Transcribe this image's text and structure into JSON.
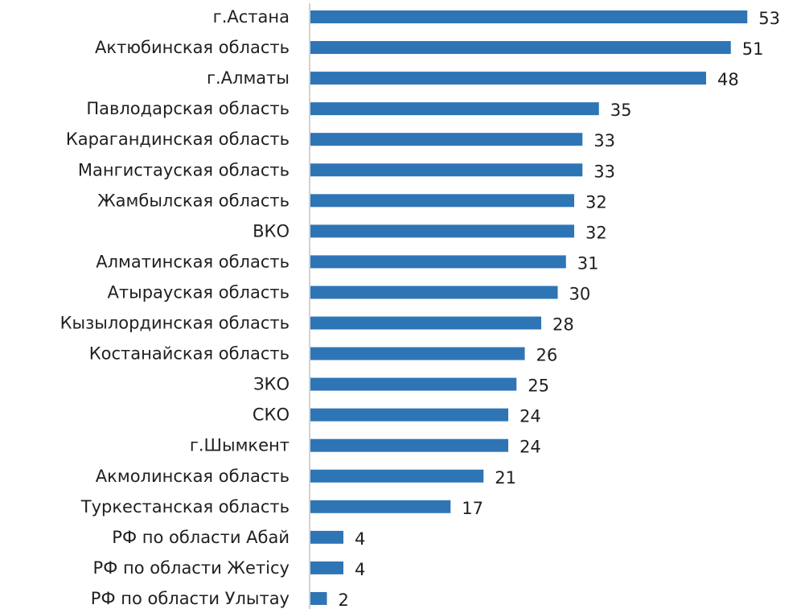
{
  "chart_data": {
    "type": "bar",
    "orientation": "horizontal",
    "title": "",
    "xlabel": "",
    "ylabel": "",
    "grid": false,
    "legend": "none",
    "xlim": [
      0,
      55
    ],
    "bar_color": "#2e75b6",
    "categories": [
      "г.Астана",
      "Актюбинская область",
      "г.Алматы",
      "Павлодарская область",
      "Карагандинская область",
      "Мангистауская область",
      "Жамбылская область",
      "ВКО",
      "Алматинская область",
      "Атырауская область",
      "Кызылординская область",
      "Костанайская область",
      "ЗКО",
      "СКО",
      "г.Шымкент",
      "Акмолинская область",
      "Туркестанская область",
      "РФ по области Абай",
      "РФ по области Жетісу",
      "РФ по области Улытау"
    ],
    "values": [
      53,
      51,
      48,
      35,
      33,
      33,
      32,
      32,
      31,
      30,
      28,
      26,
      25,
      24,
      24,
      21,
      17,
      4,
      4,
      2
    ]
  }
}
